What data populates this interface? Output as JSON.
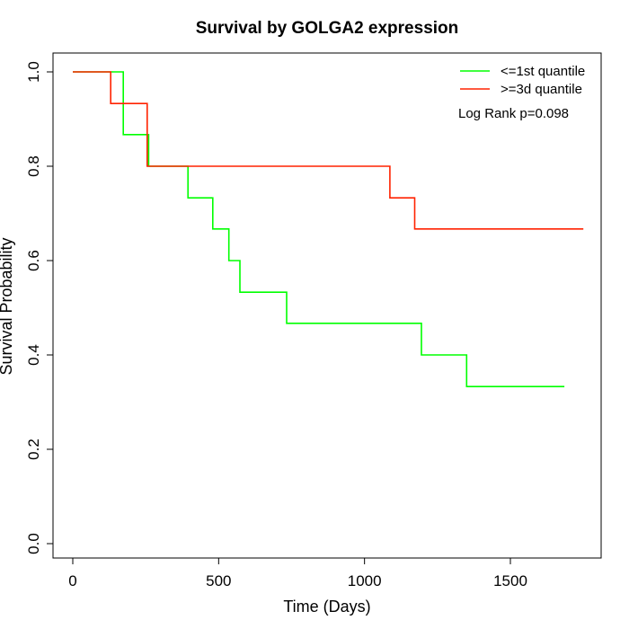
{
  "chart_data": {
    "type": "line",
    "step": true,
    "title": "Survival by GOLGA2 expression",
    "xlabel": "Time (Days)",
    "ylabel": "Survival Probability",
    "xlim": [
      0,
      1800
    ],
    "ylim": [
      0,
      1
    ],
    "xticks": [
      {
        "value": 0,
        "label": "0"
      },
      {
        "value": 500,
        "label": "500"
      },
      {
        "value": 1000,
        "label": "1000"
      },
      {
        "value": 1500,
        "label": "1500"
      }
    ],
    "yticks": [
      {
        "value": 0,
        "label": "0.0"
      },
      {
        "value": 0.2,
        "label": "0.2"
      },
      {
        "value": 0.4,
        "label": "0.4"
      },
      {
        "value": 0.6,
        "label": "0.6"
      },
      {
        "value": 0.8,
        "label": "0.8"
      },
      {
        "value": 1.0,
        "label": "1.0"
      }
    ],
    "grid": false,
    "legend_position": "top-right",
    "annotation": "Log Rank p=0.098",
    "series": [
      {
        "name": "<=1st quantile",
        "color": "#00ff00",
        "points": [
          {
            "x": 0,
            "y": 1.0
          },
          {
            "x": 173,
            "y": 0.867
          },
          {
            "x": 260,
            "y": 0.8
          },
          {
            "x": 395,
            "y": 0.733
          },
          {
            "x": 480,
            "y": 0.667
          },
          {
            "x": 535,
            "y": 0.6
          },
          {
            "x": 573,
            "y": 0.533
          },
          {
            "x": 733,
            "y": 0.467
          },
          {
            "x": 1195,
            "y": 0.4
          },
          {
            "x": 1350,
            "y": 0.333
          },
          {
            "x": 1685,
            "y": 0.333
          }
        ]
      },
      {
        "name": ">=3d quantile",
        "color": "#ff2200",
        "points": [
          {
            "x": 0,
            "y": 1.0
          },
          {
            "x": 130,
            "y": 0.933
          },
          {
            "x": 255,
            "y": 0.8
          },
          {
            "x": 1087,
            "y": 0.733
          },
          {
            "x": 1172,
            "y": 0.667
          },
          {
            "x": 1750,
            "y": 0.667
          }
        ]
      }
    ]
  }
}
